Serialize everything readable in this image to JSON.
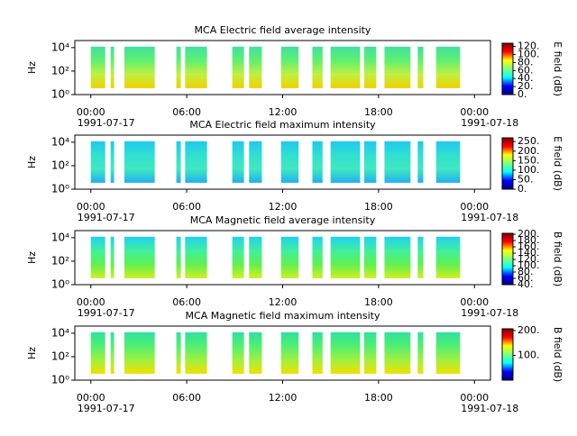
{
  "chart_data": [
    {
      "type": "spectrogram",
      "title": "MCA  Electric field average intensity",
      "ylabel": "Hz",
      "colorbar_label": "E field (dB)",
      "xlim": [
        -1,
        25
      ],
      "xticks": [
        {
          "value": 0,
          "label": "00:00"
        },
        {
          "value": 6,
          "label": "06:00"
        },
        {
          "value": 12,
          "label": "12:00"
        },
        {
          "value": 18,
          "label": "18:00"
        },
        {
          "value": 24,
          "label": "00:00"
        }
      ],
      "x_date_labels": [
        {
          "value": 0,
          "label": "1991-07-17"
        },
        {
          "value": 24,
          "label": "1991-07-18"
        }
      ],
      "ylim": [
        1,
        40000
      ],
      "log_y": true,
      "yticks": [
        {
          "value": 1,
          "label": "10⁰"
        },
        {
          "value": 100,
          "label": "10²"
        },
        {
          "value": 10000,
          "label": "10⁴"
        }
      ],
      "clim": [
        0,
        128
      ],
      "cticks": [
        {
          "value": 0,
          "label": "0."
        },
        {
          "value": 20,
          "label": "20."
        },
        {
          "value": 40,
          "label": "40."
        },
        {
          "value": 60,
          "label": "60."
        },
        {
          "value": 80,
          "label": "80."
        },
        {
          "value": 100,
          "label": "100."
        },
        {
          "value": 120,
          "label": "120."
        }
      ],
      "colormap": [
        "#00007f",
        "#0000ff",
        "#00ffff",
        "#7fff7f",
        "#ffff00",
        "#ff0000",
        "#7f0000"
      ],
      "fill_colors": [
        "#40e0a0",
        "#60f070",
        "#c0f040",
        "#f0d000"
      ],
      "freq_range": [
        3.5,
        12000
      ],
      "segments": [
        [
          0,
          0.9
        ],
        [
          1.24,
          1.46
        ],
        [
          2.1,
          4.0
        ],
        [
          5.35,
          5.63
        ],
        [
          5.9,
          7.27
        ],
        [
          8.85,
          9.58
        ],
        [
          9.9,
          10.7
        ],
        [
          11.9,
          13.0
        ],
        [
          13.86,
          14.5
        ],
        [
          15.0,
          16.85
        ],
        [
          17.1,
          17.86
        ],
        [
          18.37,
          20.0
        ],
        [
          20.45,
          20.8
        ],
        [
          21.6,
          23.1
        ]
      ]
    },
    {
      "type": "spectrogram",
      "title": "MCA  Electric field maximum intensity",
      "ylabel": "Hz",
      "colorbar_label": "E field (dB)",
      "xlim": [
        -1,
        25
      ],
      "xticks": [
        {
          "value": 0,
          "label": "00:00"
        },
        {
          "value": 6,
          "label": "06:00"
        },
        {
          "value": 12,
          "label": "12:00"
        },
        {
          "value": 18,
          "label": "18:00"
        },
        {
          "value": 24,
          "label": "00:00"
        }
      ],
      "x_date_labels": [
        {
          "value": 0,
          "label": "1991-07-17"
        },
        {
          "value": 24,
          "label": "1991-07-18"
        }
      ],
      "ylim": [
        1,
        40000
      ],
      "log_y": true,
      "yticks": [
        {
          "value": 1,
          "label": "10⁰"
        },
        {
          "value": 100,
          "label": "10²"
        },
        {
          "value": 10000,
          "label": "10⁴"
        }
      ],
      "clim": [
        0,
        270
      ],
      "cticks": [
        {
          "value": 0,
          "label": "0."
        },
        {
          "value": 50,
          "label": "50."
        },
        {
          "value": 100,
          "label": "100."
        },
        {
          "value": 150,
          "label": "150."
        },
        {
          "value": 200,
          "label": "200."
        },
        {
          "value": 250,
          "label": "250."
        }
      ],
      "colormap": [
        "#00007f",
        "#0000ff",
        "#00ffff",
        "#7fff7f",
        "#ffff00",
        "#ff0000",
        "#7f0000"
      ],
      "fill_colors": [
        "#20c8f0",
        "#30e0d0",
        "#40e8c0",
        "#20b0f0"
      ],
      "freq_range": [
        3.5,
        12000
      ],
      "segments": [
        [
          0,
          0.9
        ],
        [
          1.24,
          1.46
        ],
        [
          2.1,
          4.0
        ],
        [
          5.35,
          5.63
        ],
        [
          5.9,
          7.27
        ],
        [
          8.85,
          9.58
        ],
        [
          9.9,
          10.7
        ],
        [
          11.9,
          13.0
        ],
        [
          13.86,
          14.5
        ],
        [
          15.0,
          16.85
        ],
        [
          17.1,
          17.86
        ],
        [
          18.37,
          20.0
        ],
        [
          20.45,
          20.8
        ],
        [
          21.6,
          23.1
        ]
      ]
    },
    {
      "type": "spectrogram",
      "title": "MCA  Magnetic field average intensity",
      "ylabel": "Hz",
      "colorbar_label": "B field (dB)",
      "xlim": [
        -1,
        25
      ],
      "xticks": [
        {
          "value": 0,
          "label": "00:00"
        },
        {
          "value": 6,
          "label": "06:00"
        },
        {
          "value": 12,
          "label": "12:00"
        },
        {
          "value": 18,
          "label": "18:00"
        },
        {
          "value": 24,
          "label": "00:00"
        }
      ],
      "x_date_labels": [
        {
          "value": 0,
          "label": "1991-07-17"
        },
        {
          "value": 24,
          "label": "1991-07-18"
        }
      ],
      "ylim": [
        1,
        40000
      ],
      "log_y": true,
      "yticks": [
        {
          "value": 1,
          "label": "10⁰"
        },
        {
          "value": 100,
          "label": "10²"
        },
        {
          "value": 10000,
          "label": "10⁴"
        }
      ],
      "clim": [
        40,
        203
      ],
      "cticks": [
        {
          "value": 40,
          "label": "40."
        },
        {
          "value": 60,
          "label": "60."
        },
        {
          "value": 80,
          "label": "80."
        },
        {
          "value": 100,
          "label": "100."
        },
        {
          "value": 120,
          "label": "120."
        },
        {
          "value": 140,
          "label": "140."
        },
        {
          "value": 160,
          "label": "160."
        },
        {
          "value": 180,
          "label": "180."
        },
        {
          "value": 200,
          "label": "200."
        }
      ],
      "colormap": [
        "#00007f",
        "#0000ff",
        "#00ffff",
        "#7fff7f",
        "#ffff00",
        "#ff0000",
        "#7f0000"
      ],
      "fill_colors": [
        "#20d0f0",
        "#40f0a0",
        "#60f050",
        "#d0f020"
      ],
      "freq_range": [
        3.5,
        12000
      ],
      "segments": [
        [
          0,
          0.9
        ],
        [
          1.24,
          1.46
        ],
        [
          2.1,
          4.0
        ],
        [
          5.35,
          5.63
        ],
        [
          5.9,
          7.27
        ],
        [
          8.85,
          9.58
        ],
        [
          9.9,
          10.7
        ],
        [
          11.9,
          13.0
        ],
        [
          13.86,
          14.5
        ],
        [
          15.0,
          16.85
        ],
        [
          17.1,
          17.86
        ],
        [
          18.37,
          20.0
        ],
        [
          20.45,
          20.8
        ],
        [
          21.6,
          23.1
        ]
      ]
    },
    {
      "type": "spectrogram",
      "title": "MCA  Magnetic field maximum intensity",
      "ylabel": "Hz",
      "colorbar_label": "B field (dB)",
      "xlim": [
        -1,
        25
      ],
      "xticks": [
        {
          "value": 0,
          "label": "00:00"
        },
        {
          "value": 6,
          "label": "06:00"
        },
        {
          "value": 12,
          "label": "12:00"
        },
        {
          "value": 18,
          "label": "18:00"
        },
        {
          "value": 24,
          "label": "00:00"
        }
      ],
      "x_date_labels": [
        {
          "value": 0,
          "label": "1991-07-17"
        },
        {
          "value": 24,
          "label": "1991-07-18"
        }
      ],
      "ylim": [
        1,
        40000
      ],
      "log_y": true,
      "yticks": [
        {
          "value": 1,
          "label": "10⁰"
        },
        {
          "value": 100,
          "label": "10²"
        },
        {
          "value": 10000,
          "label": "10⁴"
        }
      ],
      "clim": [
        0,
        207
      ],
      "cticks": [
        {
          "value": 100,
          "label": "100."
        },
        {
          "value": 200,
          "label": "200."
        }
      ],
      "colormap": [
        "#00007f",
        "#0000ff",
        "#00ffff",
        "#7fff7f",
        "#ffff00",
        "#ff0000",
        "#7f0000"
      ],
      "fill_colors": [
        "#30e0a0",
        "#50f070",
        "#a0f040",
        "#f0e000"
      ],
      "freq_range": [
        3.5,
        12000
      ],
      "segments": [
        [
          0,
          0.9
        ],
        [
          1.24,
          1.46
        ],
        [
          2.1,
          4.0
        ],
        [
          5.35,
          5.63
        ],
        [
          5.9,
          7.27
        ],
        [
          8.85,
          9.58
        ],
        [
          9.9,
          10.7
        ],
        [
          11.9,
          13.0
        ],
        [
          13.86,
          14.5
        ],
        [
          15.0,
          16.85
        ],
        [
          17.1,
          17.86
        ],
        [
          18.37,
          20.0
        ],
        [
          20.45,
          20.8
        ],
        [
          21.6,
          23.1
        ]
      ]
    }
  ]
}
